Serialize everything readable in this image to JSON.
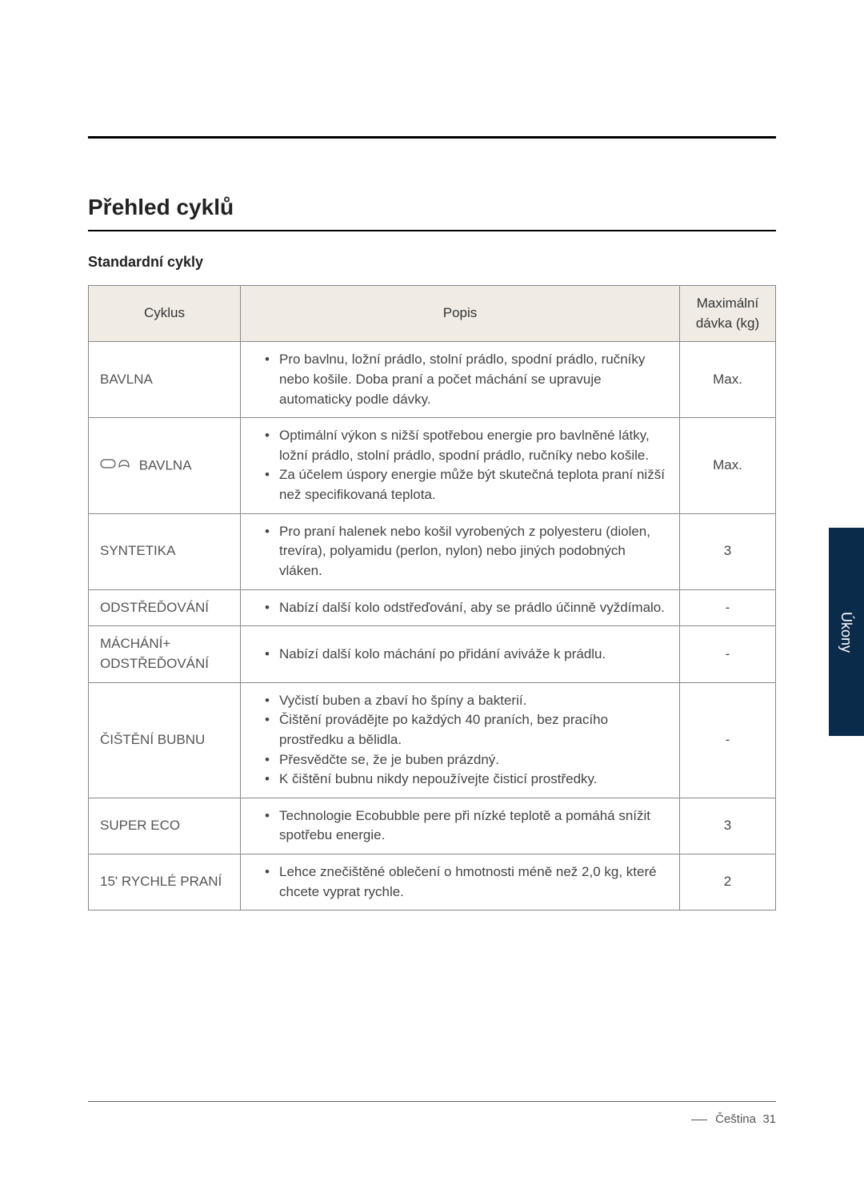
{
  "section_title": "Přehled cyklů",
  "subtitle": "Standardní cykly",
  "side_tab": "Úkony",
  "footer_lang": "Čeština",
  "footer_page": "31",
  "table": {
    "headers": {
      "cycle": "Cyklus",
      "desc": "Popis",
      "max": "Maximální dávka (kg)"
    },
    "rows": [
      {
        "cycle": "BAVLNA",
        "has_icon": false,
        "items": [
          "Pro bavlnu, ložní prádlo, stolní prádlo, spodní prádlo, ručníky nebo košile. Doba praní a počet máchání se upravuje automaticky podle dávky."
        ],
        "max": "Max."
      },
      {
        "cycle": "BAVLNA",
        "has_icon": true,
        "items": [
          "Optimální výkon s nižší spotřebou energie pro bavlněné látky, ložní prádlo, stolní prádlo, spodní prádlo, ručníky nebo košile.",
          "Za účelem úspory energie může být skutečná teplota praní nižší než specifikovaná teplota."
        ],
        "max": "Max."
      },
      {
        "cycle": "SYNTETIKA",
        "has_icon": false,
        "items": [
          "Pro praní halenek nebo košil vyrobených z polyesteru (diolen, trevíra), polyamidu (perlon, nylon) nebo jiných podobných vláken."
        ],
        "max": "3"
      },
      {
        "cycle": "ODSTŘEĎOVÁNÍ",
        "has_icon": false,
        "items": [
          "Nabízí další kolo odstřeďování, aby se prádlo účinně vyždímalo."
        ],
        "max": "-"
      },
      {
        "cycle": "MÁCHÁNÍ+ ODSTŘEĎOVÁNÍ",
        "has_icon": false,
        "items": [
          "Nabízí další kolo máchání po přidání aviváže k prádlu."
        ],
        "max": "-"
      },
      {
        "cycle": "ČIŠTĚNÍ BUBNU",
        "has_icon": false,
        "items": [
          "Vyčistí buben a zbaví ho špíny a bakterií.",
          "Čištění provádějte po každých 40 praních, bez pracího prostředku a bělidla.",
          "Přesvědčte se, že je buben prázdný.",
          "K čištění bubnu nikdy nepoužívejte čisticí prostředky."
        ],
        "max": "-"
      },
      {
        "cycle": "SUPER ECO",
        "has_icon": false,
        "items": [
          "Technologie Ecobubble pere při nízké teplotě a pomáhá snížit spotřebu energie."
        ],
        "max": "3"
      },
      {
        "cycle": "15' RYCHLÉ PRANÍ",
        "has_icon": false,
        "items": [
          "Lehce znečištěné oblečení o hmotnosti méně než 2,0 kg, které chcete vyprat rychle."
        ],
        "max": "2"
      }
    ]
  },
  "colors": {
    "header_bg": "#f0ece5",
    "border": "#888888",
    "text": "#333333",
    "tab_bg": "#0b2b4a"
  }
}
